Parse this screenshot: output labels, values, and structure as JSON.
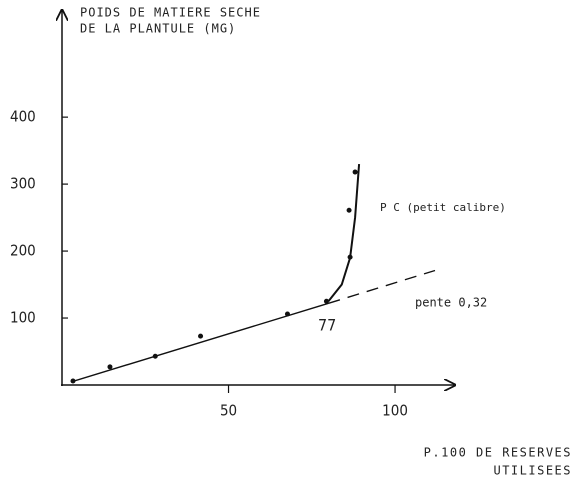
{
  "chart_data": {
    "type": "scatter",
    "y_label": [
      "POIDS DE MATIERE SECHE",
      "DE LA PLANTULE (MG)"
    ],
    "x_label": [
      "P.100 DE RESERVES",
      "UTILISEES"
    ],
    "x": [
      3.3,
      14.4,
      28,
      41.6,
      67.7,
      79.4,
      86.5,
      86.2,
      88
    ],
    "values": [
      6,
      27,
      43,
      73,
      106,
      125,
      191,
      261,
      318
    ],
    "color": "#111111",
    "xlim": [
      0,
      118
    ],
    "ylim": [
      0,
      560
    ],
    "xticks": [
      50,
      100
    ],
    "yticks": [
      100,
      200,
      300,
      400
    ],
    "lines": [
      {
        "x": [
          3,
          80
        ],
        "y": [
          5,
          122
        ],
        "style": "solid"
      },
      {
        "x": [
          80,
          112
        ],
        "y": [
          122,
          171
        ],
        "style": "dashed"
      },
      {
        "x": [
          80,
          84,
          86.5,
          88,
          89.2
        ],
        "y": [
          125,
          150,
          190,
          250,
          330
        ],
        "style": "solid"
      }
    ],
    "annotations": [
      "P C (petit calibre)",
      "pente 0,32",
      "77"
    ]
  }
}
